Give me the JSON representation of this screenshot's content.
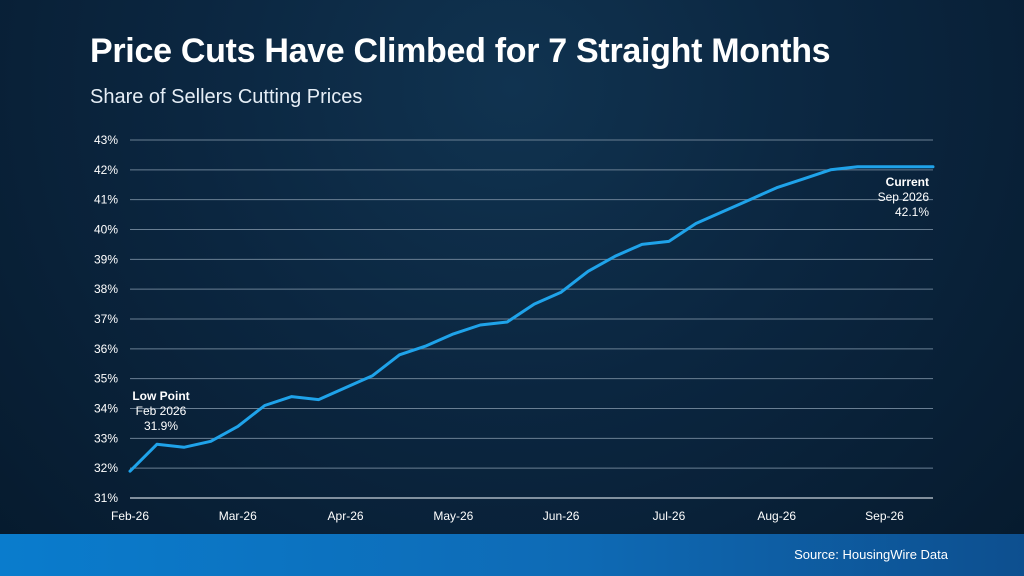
{
  "header": {
    "title": "Price Cuts Have Climbed for 7 Straight Months",
    "subtitle": "Share of Sellers Cutting Prices"
  },
  "footer": {
    "source": "Source: HousingWire Data"
  },
  "colors": {
    "line": "#1fa3ea",
    "grid": "#6a7f93",
    "footer": "#0a7ccd"
  },
  "chart_data": {
    "type": "line",
    "title": "Price Cuts Have Climbed for 7 Straight Months",
    "subtitle": "Share of Sellers Cutting Prices",
    "xlabel": "",
    "ylabel": "",
    "ylim": [
      31,
      43
    ],
    "xlim": [
      0,
      7.45
    ],
    "grid": true,
    "x_tick_labels": [
      "Feb-26",
      "Mar-26",
      "Apr-26",
      "May-26",
      "Jun-26",
      "Jul-26",
      "Aug-26",
      "Sep-26"
    ],
    "x_tick_positions": [
      0,
      1,
      2,
      3,
      4,
      5,
      6,
      7
    ],
    "y_ticks": [
      31,
      32,
      33,
      34,
      35,
      36,
      37,
      38,
      39,
      40,
      41,
      42,
      43
    ],
    "y_tick_labels": [
      "31%",
      "32%",
      "33%",
      "34%",
      "35%",
      "36%",
      "37%",
      "38%",
      "39%",
      "40%",
      "41%",
      "42%",
      "43%"
    ],
    "series": [
      {
        "name": "",
        "x": [
          0,
          0.25,
          0.5,
          0.75,
          1.0,
          1.25,
          1.5,
          1.75,
          2.0,
          2.25,
          2.5,
          2.75,
          3.0,
          3.25,
          3.5,
          3.75,
          4.0,
          4.25,
          4.5,
          4.75,
          5.0,
          5.25,
          5.5,
          5.75,
          6.0,
          6.25,
          6.5,
          6.75,
          7.0,
          7.25,
          7.45
        ],
        "values": [
          31.9,
          32.8,
          32.7,
          32.9,
          33.4,
          34.1,
          34.4,
          34.3,
          34.7,
          35.1,
          35.8,
          36.1,
          36.5,
          36.8,
          36.9,
          37.5,
          37.9,
          38.6,
          39.1,
          39.5,
          39.6,
          40.2,
          40.6,
          41.0,
          41.4,
          41.7,
          42.0,
          42.1,
          42.1,
          42.1,
          42.1
        ]
      }
    ],
    "annotations": [
      {
        "id": "low",
        "heading": "Low Point",
        "date": "Feb 2026",
        "value": "31.9%",
        "x": 0,
        "y": 31.9
      },
      {
        "id": "current",
        "heading": "Current",
        "date": "Sep 2026",
        "value": "42.1%",
        "x": 7.45,
        "y": 42.1
      }
    ]
  }
}
